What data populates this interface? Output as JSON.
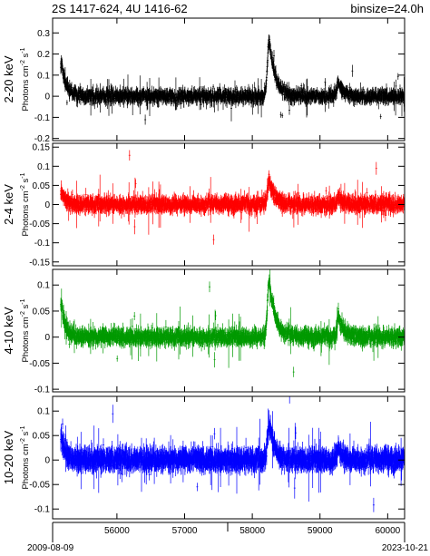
{
  "header": {
    "source": "2S 1417-624, 4U 1416-62",
    "binsize": "binsize=24.0h"
  },
  "footer": {
    "start_date": "2009-08-09",
    "end_date": "2023-10-21"
  },
  "chart_data": [
    {
      "type": "scatter",
      "band": "2-20 keV",
      "ylabel": "Photons cm^-2 s^-1",
      "color": "#000000",
      "xlim": [
        55050,
        60250
      ],
      "ylim": [
        -0.21,
        0.37
      ],
      "yticks": [
        -0.2,
        -0.1,
        0,
        0.1,
        0.2,
        0.3
      ],
      "ytick_labels": [
        "-0.2",
        "-0.1",
        "0",
        "0.1",
        "0.2",
        "0.3"
      ],
      "noise": 0.028,
      "err": 0.03,
      "outbursts": [
        {
          "t": 55180,
          "amp": 0.16,
          "rise": 20,
          "decay": 70
        },
        {
          "t": 58250,
          "amp": 0.27,
          "rise": 25,
          "decay": 90
        },
        {
          "t": 59270,
          "amp": 0.07,
          "rise": 20,
          "decay": 70
        }
      ]
    },
    {
      "type": "scatter",
      "band": "2-4 keV",
      "ylabel": "Photons cm^-2 s^-1",
      "color": "#ff0000",
      "xlim": [
        55050,
        60250
      ],
      "ylim": [
        -0.16,
        0.16
      ],
      "yticks": [
        -0.15,
        -0.1,
        -0.05,
        0,
        0.05,
        0.1,
        0.15
      ],
      "ytick_labels": [
        "-0.15",
        "-0.1",
        "-0.05",
        "0",
        "0.05",
        "0.1",
        "0.15"
      ],
      "noise": 0.016,
      "err": 0.02,
      "outbursts": [
        {
          "t": 55180,
          "amp": 0.035,
          "rise": 20,
          "decay": 60
        },
        {
          "t": 58250,
          "amp": 0.06,
          "rise": 25,
          "decay": 80
        },
        {
          "t": 59270,
          "amp": 0.02,
          "rise": 20,
          "decay": 60
        }
      ]
    },
    {
      "type": "scatter",
      "band": "4-10 keV",
      "ylabel": "Photons cm^-2 s^-1",
      "color": "#009900",
      "xlim": [
        55050,
        60250
      ],
      "ylim": [
        -0.105,
        0.13
      ],
      "yticks": [
        -0.1,
        -0.05,
        0,
        0.05,
        0.1
      ],
      "ytick_labels": [
        "-0.1",
        "-0.05",
        "0",
        "0.05",
        "0.1"
      ],
      "noise": 0.012,
      "err": 0.015,
      "outbursts": [
        {
          "t": 55180,
          "amp": 0.065,
          "rise": 20,
          "decay": 60
        },
        {
          "t": 58250,
          "amp": 0.11,
          "rise": 25,
          "decay": 90
        },
        {
          "t": 59270,
          "amp": 0.04,
          "rise": 20,
          "decay": 70
        }
      ]
    },
    {
      "type": "scatter",
      "band": "10-20 keV",
      "ylabel": "Photons cm^-2 s^-1",
      "color": "#0000ff",
      "xlim": [
        55050,
        60250
      ],
      "ylim": [
        -0.12,
        0.13
      ],
      "yticks": [
        -0.1,
        -0.05,
        0,
        0.05,
        0.1
      ],
      "ytick_labels": [
        "-0.1",
        "-0.05",
        "0",
        "0.05",
        "0.1"
      ],
      "noise": 0.016,
      "err": 0.022,
      "outbursts": [
        {
          "t": 55180,
          "amp": 0.05,
          "rise": 20,
          "decay": 60
        },
        {
          "t": 58250,
          "amp": 0.075,
          "rise": 25,
          "decay": 80
        },
        {
          "t": 59270,
          "amp": 0.025,
          "rise": 20,
          "decay": 60
        }
      ]
    }
  ],
  "xaxis": {
    "ticks": [
      56000,
      57000,
      58000,
      59000,
      60000
    ],
    "tick_labels": [
      "56000",
      "57000",
      "58000",
      "59000",
      "60000"
    ]
  }
}
